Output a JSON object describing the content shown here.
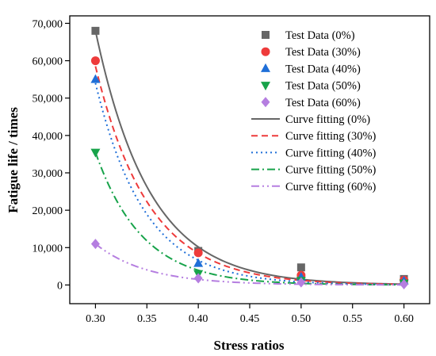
{
  "chart_data": {
    "type": "scatter",
    "xlabel": "Stress ratios",
    "ylabel": "Fatigue life / times",
    "xlim": [
      0.275,
      0.625
    ],
    "ylim": [
      -5000,
      72000
    ],
    "xticks": [
      0.3,
      0.35,
      0.4,
      0.45,
      0.5,
      0.55,
      0.6
    ],
    "xtick_labels": [
      "0.30",
      "0.35",
      "0.40",
      "0.45",
      "0.50",
      "0.55",
      "0.60"
    ],
    "yticks": [
      0,
      10000,
      20000,
      30000,
      40000,
      50000,
      60000,
      70000
    ],
    "ytick_labels": [
      "0",
      "10,000",
      "20,000",
      "30,000",
      "40,000",
      "50,000",
      "60,000",
      "70,000"
    ],
    "legend_position": "top-right",
    "x": [
      0.3,
      0.4,
      0.5,
      0.6
    ],
    "series": [
      {
        "name": "Test Data (0%)",
        "kind": "scatter",
        "marker": "square",
        "color": "#666666",
        "values": [
          68000,
          9100,
          4700,
          1600
        ]
      },
      {
        "name": "Test Data (30%)",
        "kind": "scatter",
        "marker": "circle",
        "color": "#ee3b3b",
        "values": [
          60000,
          8600,
          2600,
          1300
        ]
      },
      {
        "name": "Test Data (40%)",
        "kind": "scatter",
        "marker": "triangle-up",
        "color": "#1f6fd8",
        "values": [
          55000,
          5800,
          2100,
          1100
        ]
      },
      {
        "name": "Test Data (50%)",
        "kind": "scatter",
        "marker": "triangle-down",
        "color": "#17a34a",
        "values": [
          35500,
          3000,
          1200,
          500
        ]
      },
      {
        "name": "Test Data (60%)",
        "kind": "scatter",
        "marker": "diamond",
        "color": "#b57ee0",
        "values": [
          11000,
          1800,
          700,
          200
        ]
      }
    ],
    "fits": [
      {
        "name": "Curve fitting (0%)",
        "kind": "line",
        "style": "solid",
        "color": "#666666",
        "amplitude": 68000,
        "decay": 19.0
      },
      {
        "name": "Curve fitting (30%)",
        "kind": "line",
        "style": "dashed",
        "color": "#ee3b3b",
        "amplitude": 58500,
        "decay": 19.3
      },
      {
        "name": "Curve fitting (40%)",
        "kind": "line",
        "style": "dotted",
        "color": "#1f6fd8",
        "amplitude": 54000,
        "decay": 21.0
      },
      {
        "name": "Curve fitting (50%)",
        "kind": "line",
        "style": "dash-dot",
        "color": "#17a34a",
        "amplitude": 35500,
        "decay": 22.0
      },
      {
        "name": "Curve fitting (60%)",
        "kind": "line",
        "style": "dash-dot-dot",
        "color": "#b57ee0",
        "amplitude": 11000,
        "decay": 20.0
      }
    ]
  }
}
